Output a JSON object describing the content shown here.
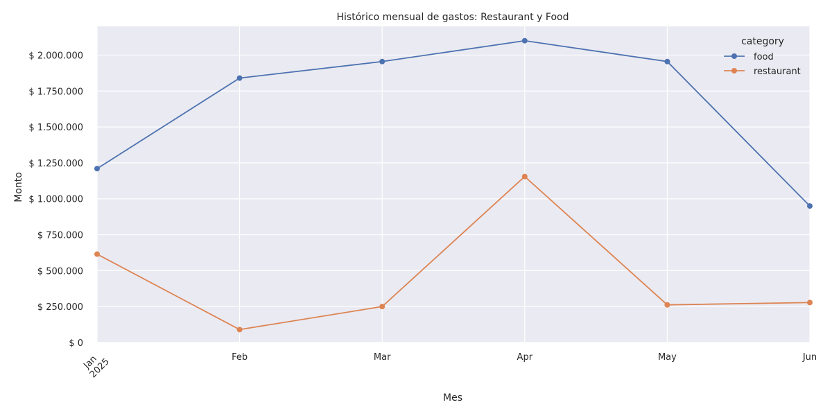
{
  "chart_data": {
    "type": "line",
    "title": "Histórico mensual de gastos: Restaurant y Food",
    "xlabel": "Mes",
    "ylabel": "Monto",
    "categories": [
      "Jan",
      "Feb",
      "Mar",
      "Apr",
      "May",
      "Jun"
    ],
    "year_label": "2025",
    "ylim": [
      0,
      2200000
    ],
    "yticks": [
      0,
      250000,
      500000,
      750000,
      1000000,
      1250000,
      1500000,
      1750000,
      2000000
    ],
    "ytick_labels": [
      "$ 0",
      "$ 250.000",
      "$ 500.000",
      "$ 750.000",
      "$ 1.000.000",
      "$ 1.250.000",
      "$ 1.500.000",
      "$ 1.750.000",
      "$ 2.000.000"
    ],
    "grid": true,
    "legend": {
      "title": "category",
      "placement": "top-right"
    },
    "series": [
      {
        "name": "food",
        "color": "#4c72b0",
        "values": [
          1210000,
          1840000,
          1955000,
          2100000,
          1955000,
          950000
        ]
      },
      {
        "name": "restaurant",
        "color": "#dd8452",
        "values": [
          615000,
          90000,
          250000,
          1155000,
          262000,
          278000
        ]
      }
    ]
  }
}
